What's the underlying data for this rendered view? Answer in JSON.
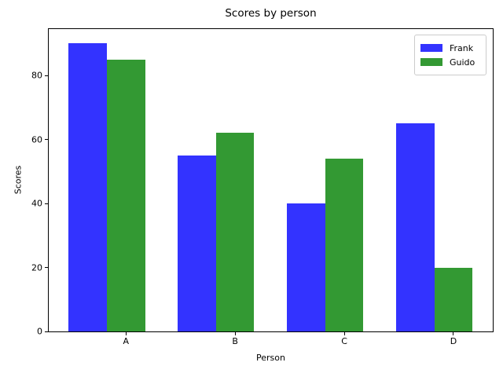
{
  "chart_data": {
    "type": "bar",
    "title": "Scores by person",
    "xlabel": "Person",
    "ylabel": "Scores",
    "categories": [
      "A",
      "B",
      "C",
      "D"
    ],
    "series": [
      {
        "name": "Frank",
        "color": "#3333ff",
        "values": [
          90,
          55,
          40,
          65
        ]
      },
      {
        "name": "Guido",
        "color": "#339933",
        "values": [
          85,
          62,
          54,
          20
        ]
      }
    ],
    "yticks": [
      0,
      20,
      40,
      60,
      80
    ],
    "ylim": [
      0,
      94.5
    ],
    "xlim": [
      -0.707,
      3.36
    ],
    "bar_width": 0.35,
    "grid": false,
    "legend_position": "upper right",
    "background_color": "#ffffff",
    "spine_color": "#000000"
  }
}
